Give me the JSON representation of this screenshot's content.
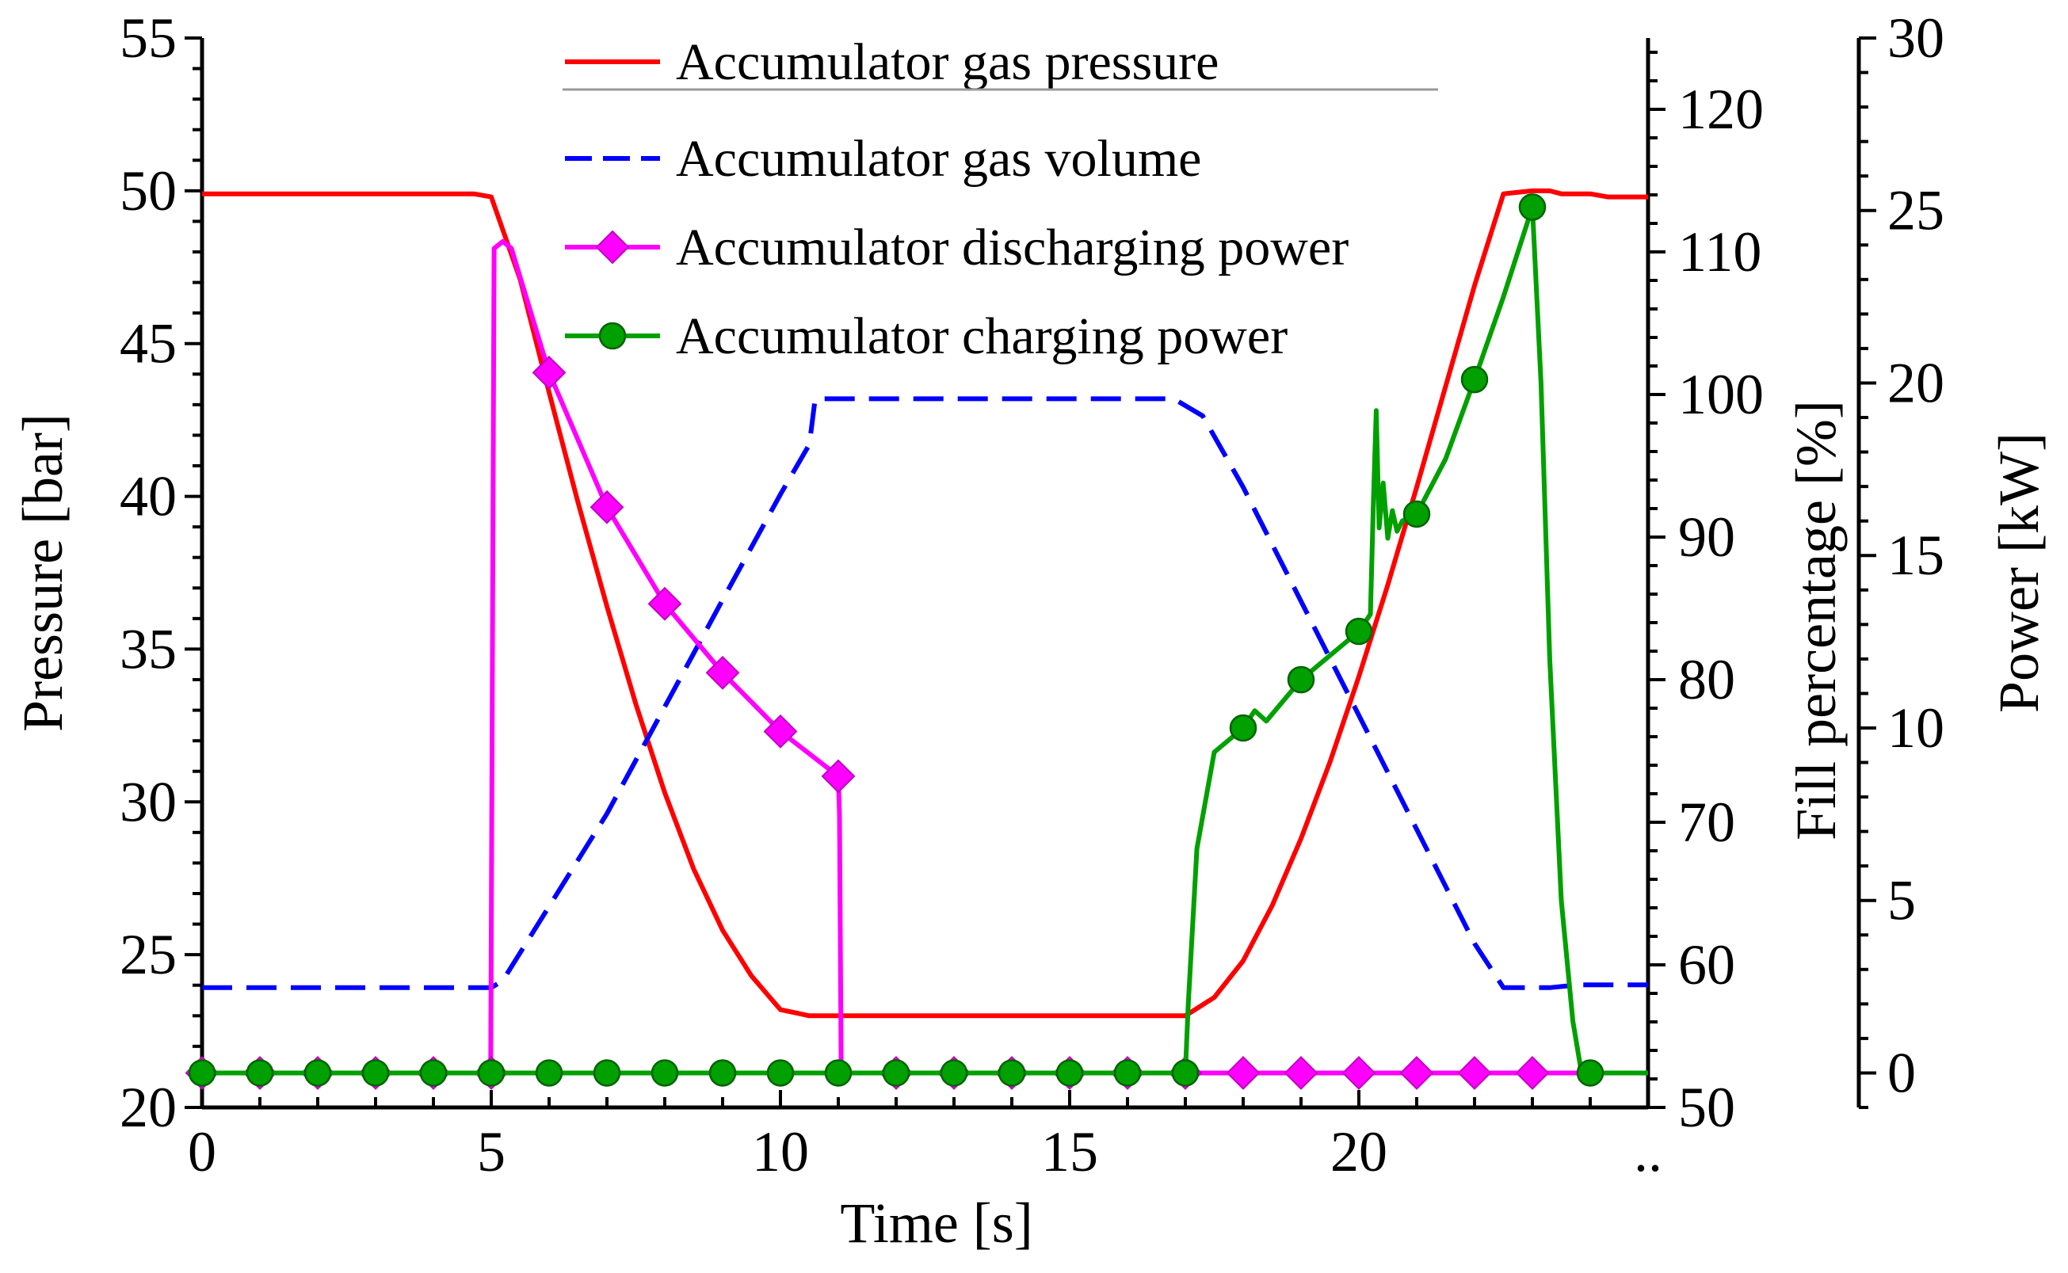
{
  "chart_data": {
    "type": "line",
    "xlabel": "Time [s]",
    "x_range": [
      0,
      25
    ],
    "x_ticks": [
      0,
      5,
      10,
      15,
      20
    ],
    "x_tick_labels": [
      "0",
      "5",
      "10",
      "15",
      "20"
    ],
    "x_overflow_label": "..",
    "legend_position": "top-center",
    "grid": false,
    "axes": {
      "pressure": {
        "label": "Pressure [bar]",
        "range": [
          20,
          55
        ],
        "ticks": [
          20,
          25,
          30,
          35,
          40,
          45,
          50,
          55
        ],
        "tick_labels": [
          "20",
          "25",
          "30",
          "35",
          "40",
          "45",
          "50",
          "55"
        ]
      },
      "fill": {
        "label": "Fill percentage [%]",
        "range": [
          50,
          125
        ],
        "ticks": [
          50,
          60,
          70,
          80,
          90,
          100,
          110,
          120
        ],
        "tick_labels": [
          "50",
          "60",
          "70",
          "80",
          "90",
          "100",
          "110",
          "120"
        ]
      },
      "power": {
        "label": "Power [kW]",
        "range": [
          -1,
          30
        ],
        "ticks": [
          0,
          5,
          10,
          15,
          20,
          25,
          30
        ],
        "tick_labels": [
          "0",
          "5",
          "10",
          "15",
          "20",
          "25",
          "30"
        ]
      }
    },
    "series": [
      {
        "name": "Accumulator gas pressure",
        "axis": "pressure",
        "color": "#ff0000",
        "style": "solid",
        "marker": "none",
        "x": [
          0,
          4.7,
          5.0,
          5.5,
          6.0,
          6.5,
          7.0,
          7.5,
          8.0,
          8.5,
          9.0,
          9.5,
          10.0,
          10.5,
          17.0,
          17.5,
          18.0,
          18.5,
          19.0,
          19.5,
          20.0,
          20.5,
          21.0,
          21.5,
          22.0,
          22.5,
          23.0,
          23.3,
          23.5,
          24.0,
          24.3,
          25.0
        ],
        "y": [
          49.9,
          49.9,
          49.8,
          47.1,
          43.4,
          39.8,
          36.4,
          33.2,
          30.3,
          27.8,
          25.8,
          24.3,
          23.2,
          23.0,
          23.0,
          23.6,
          24.8,
          26.6,
          28.8,
          31.3,
          34.1,
          37.1,
          40.3,
          43.6,
          46.9,
          49.9,
          50.0,
          50.0,
          49.9,
          49.9,
          49.8,
          49.8
        ]
      },
      {
        "name": "Accumulator gas volume",
        "axis": "fill",
        "color": "#0000ff",
        "style": "dashed",
        "marker": "none",
        "x": [
          0,
          5.0,
          5.2,
          6.0,
          7.0,
          8.0,
          9.0,
          10.0,
          10.5,
          10.6,
          16.8,
          17.3,
          18.0,
          19.0,
          20.0,
          21.0,
          22.0,
          22.5,
          23.0,
          23.3,
          23.8,
          25.0
        ],
        "y": [
          58.4,
          58.4,
          58.9,
          64.1,
          70.6,
          78.1,
          85.6,
          93.0,
          96.5,
          99.7,
          99.7,
          98.5,
          93.5,
          85.5,
          77.5,
          69.5,
          61.5,
          58.4,
          58.4,
          58.4,
          58.6,
          58.6
        ]
      },
      {
        "name": "Accumulator discharging power",
        "axis": "power",
        "color": "#ff00ff",
        "style": "solid",
        "marker": "diamond",
        "x": [
          0,
          4.99,
          5.05,
          5.2,
          5.35,
          6.0,
          7.0,
          8.0,
          9.0,
          10.0,
          11.0,
          11.02,
          11.05,
          12.0,
          25.0
        ],
        "y": [
          0,
          0,
          23.9,
          24.1,
          23.9,
          20.3,
          16.4,
          13.6,
          11.6,
          9.9,
          8.6,
          7.5,
          0,
          0,
          0
        ],
        "marker_x": [
          0,
          1,
          2,
          3,
          4,
          5,
          6,
          7,
          8,
          9,
          10,
          11,
          12,
          13,
          14,
          15,
          16,
          17,
          18,
          19,
          20,
          21,
          22,
          23
        ],
        "marker_y": [
          0,
          0,
          0,
          0,
          0,
          0,
          20.3,
          16.4,
          13.6,
          11.6,
          9.9,
          8.6,
          0,
          0,
          0,
          0,
          0,
          0,
          0,
          0,
          0,
          0,
          0,
          0
        ]
      },
      {
        "name": "Accumulator charging power",
        "axis": "power",
        "color": "#00a000",
        "style": "solid",
        "marker": "circle",
        "x": [
          0,
          17.0,
          17.05,
          17.2,
          17.5,
          18.0,
          18.2,
          18.4,
          19.0,
          20.0,
          20.2,
          20.25,
          20.3,
          20.35,
          20.42,
          20.5,
          20.58,
          20.66,
          20.75,
          21.0,
          21.5,
          22.0,
          22.5,
          23.0,
          23.15,
          23.3,
          23.5,
          23.7,
          23.8,
          23.85,
          25.0
        ],
        "y": [
          0,
          0,
          2.0,
          6.5,
          9.3,
          10.0,
          10.5,
          10.2,
          11.4,
          12.8,
          13.3,
          16.5,
          19.2,
          15.8,
          17.1,
          15.5,
          16.3,
          15.7,
          16.0,
          16.2,
          17.8,
          20.1,
          22.5,
          25.1,
          20.0,
          12.0,
          5.0,
          1.5,
          0.5,
          0,
          0
        ],
        "marker_x": [
          0,
          1,
          2,
          3,
          4,
          5,
          6,
          7,
          8,
          9,
          10,
          11,
          12,
          13,
          14,
          15,
          16,
          17,
          18,
          19,
          20,
          21,
          22,
          23,
          24
        ],
        "marker_y": [
          0,
          0,
          0,
          0,
          0,
          0,
          0,
          0,
          0,
          0,
          0,
          0,
          0,
          0,
          0,
          0,
          0,
          0,
          10.0,
          11.4,
          12.8,
          16.2,
          20.1,
          25.1,
          0
        ]
      }
    ]
  }
}
